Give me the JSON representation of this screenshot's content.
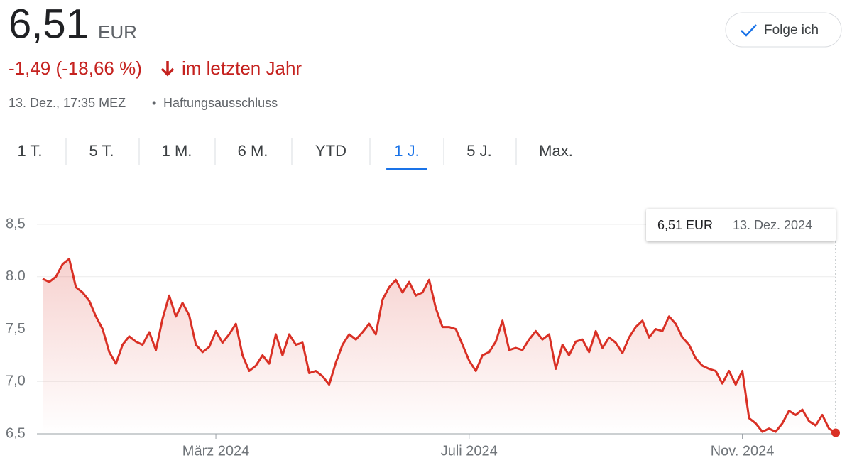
{
  "header": {
    "price": "6,51",
    "currency": "EUR",
    "change": "-1,49 (-18,66 %)",
    "change_period": "im letzten Jahr",
    "timestamp": "13. Dez., 17:35 MEZ",
    "disclaimer": "Haftungsausschluss",
    "follow_button": "Folge ich"
  },
  "tabs": [
    "1 T.",
    "5 T.",
    "1 M.",
    "6 M.",
    "YTD",
    "1 J.",
    "5 J.",
    "Max."
  ],
  "selected_tab": 5,
  "chart_data": {
    "type": "line",
    "color": "#d93025",
    "values": [
      7.98,
      7.95,
      8.0,
      8.12,
      8.17,
      7.9,
      7.85,
      7.77,
      7.62,
      7.5,
      7.28,
      7.17,
      7.35,
      7.43,
      7.38,
      7.35,
      7.47,
      7.3,
      7.6,
      7.82,
      7.62,
      7.75,
      7.63,
      7.35,
      7.28,
      7.33,
      7.48,
      7.37,
      7.45,
      7.55,
      7.25,
      7.1,
      7.15,
      7.25,
      7.17,
      7.45,
      7.25,
      7.45,
      7.35,
      7.37,
      7.08,
      7.1,
      7.05,
      6.97,
      7.18,
      7.35,
      7.45,
      7.4,
      7.47,
      7.55,
      7.45,
      7.78,
      7.9,
      7.97,
      7.85,
      7.95,
      7.82,
      7.85,
      7.97,
      7.7,
      7.52,
      7.52,
      7.5,
      7.35,
      7.2,
      7.1,
      7.25,
      7.28,
      7.38,
      7.58,
      7.3,
      7.32,
      7.3,
      7.4,
      7.48,
      7.4,
      7.45,
      7.12,
      7.35,
      7.25,
      7.38,
      7.4,
      7.28,
      7.48,
      7.32,
      7.42,
      7.37,
      7.27,
      7.42,
      7.52,
      7.58,
      7.42,
      7.5,
      7.48,
      7.62,
      7.55,
      7.42,
      7.35,
      7.22,
      7.15,
      7.12,
      7.1,
      6.98,
      7.1,
      6.97,
      7.1,
      6.65,
      6.6,
      6.52,
      6.55,
      6.52,
      6.6,
      6.72,
      6.68,
      6.73,
      6.62,
      6.58,
      6.68,
      6.55,
      6.51
    ],
    "xlim": [
      0,
      119
    ],
    "xticks": [
      {
        "value": 26,
        "label": "März 2024"
      },
      {
        "value": 64,
        "label": "Juli 2024"
      },
      {
        "value": 105,
        "label": "Nov. 2024"
      }
    ],
    "ylim": [
      6.5,
      8.5
    ],
    "yticks": [
      {
        "value": 6.5,
        "label": "6,5"
      },
      {
        "value": 7.0,
        "label": "7,0"
      },
      {
        "value": 7.5,
        "label": "7,5"
      },
      {
        "value": 8.0,
        "label": "8.0"
      },
      {
        "value": 8.5,
        "label": "8,5"
      }
    ],
    "grid": true,
    "tooltip": {
      "value_label": "6,51 EUR",
      "date": "13. Dez. 2024"
    }
  }
}
